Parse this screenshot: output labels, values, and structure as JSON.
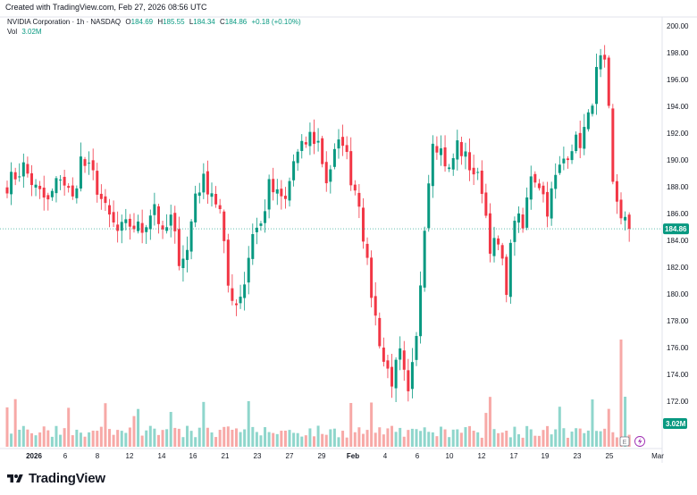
{
  "header": {
    "created_text": "Created with TradingView.com, Feb 27, 2026 08:56 UTC",
    "symbol": "NVIDIA Corporation · 1h · NASDAQ",
    "open_label": "O",
    "open": "184.69",
    "high_label": "H",
    "high": "185.55",
    "low_label": "L",
    "low": "184.34",
    "close_label": "C",
    "close": "184.86",
    "change": "+0.18 (+0.10%)",
    "volume_label": "Vol",
    "volume": "3.02M"
  },
  "footer": {
    "brand": "TradingView"
  },
  "colors": {
    "up": "#089981",
    "down": "#f23645",
    "up_volume": "#8fd6cc",
    "down_volume": "#f7a9a7",
    "last_price": "#089981"
  },
  "chart_data": {
    "type": "candlestick",
    "interval": "1h",
    "last_price_label": "184.86",
    "last_volume_label": "3.02M",
    "ylim": [
      170,
      201
    ],
    "y_ticks": [
      "200.00",
      "198.00",
      "196.00",
      "194.00",
      "192.00",
      "190.00",
      "188.00",
      "186.00",
      "184.00",
      "182.00",
      "180.00",
      "178.00",
      "176.00",
      "174.00",
      "172.00"
    ],
    "x_ticks": [
      "2026",
      "6",
      "8",
      "12",
      "14",
      "16",
      "21",
      "23",
      "27",
      "29",
      "Feb",
      "4",
      "6",
      "10",
      "12",
      "17",
      "19",
      "23",
      "25",
      "Mar"
    ],
    "bold_x_ticks": [
      "2026",
      "Feb"
    ],
    "close_path": [
      [
        0,
        188.2
      ],
      [
        4,
        189.5
      ],
      [
        7,
        187.8
      ],
      [
        10,
        186.8
      ],
      [
        13,
        188.9
      ],
      [
        16,
        187.0
      ],
      [
        18,
        190.0
      ],
      [
        21,
        188.8
      ],
      [
        24,
        186.2
      ],
      [
        27,
        184.6
      ],
      [
        30,
        185.2
      ],
      [
        33,
        184.8
      ],
      [
        36,
        186.8
      ],
      [
        38,
        184.2
      ],
      [
        40,
        185.6
      ],
      [
        42,
        182.7
      ],
      [
        44,
        183.2
      ],
      [
        46,
        187.6
      ],
      [
        48,
        188.4
      ],
      [
        50,
        187.7
      ],
      [
        52,
        186.1
      ],
      [
        54,
        180.6
      ],
      [
        56,
        179.3
      ],
      [
        58,
        180.9
      ],
      [
        60,
        184.7
      ],
      [
        62,
        185.1
      ],
      [
        64,
        188.0
      ],
      [
        66,
        187.3
      ],
      [
        68,
        186.9
      ],
      [
        70,
        189.9
      ],
      [
        72,
        190.8
      ],
      [
        74,
        191.8
      ],
      [
        76,
        191.3
      ],
      [
        78,
        188.5
      ],
      [
        80,
        190.4
      ],
      [
        82,
        191.6
      ],
      [
        84,
        188.7
      ],
      [
        86,
        187.0
      ],
      [
        88,
        182.0
      ],
      [
        90,
        178.2
      ],
      [
        92,
        175.0
      ],
      [
        94,
        173.6
      ],
      [
        96,
        175.4
      ],
      [
        98,
        172.2
      ],
      [
        100,
        176.5
      ],
      [
        102,
        185.4
      ],
      [
        104,
        191.8
      ],
      [
        106,
        190.7
      ],
      [
        108,
        189.1
      ],
      [
        110,
        191.2
      ],
      [
        112,
        190.1
      ],
      [
        114,
        189.1
      ],
      [
        116,
        188.0
      ],
      [
        118,
        183.7
      ],
      [
        120,
        183.5
      ],
      [
        122,
        180.6
      ],
      [
        124,
        185.9
      ],
      [
        126,
        184.8
      ],
      [
        128,
        189.1
      ],
      [
        130,
        188.3
      ],
      [
        132,
        186.4
      ],
      [
        134,
        188.6
      ],
      [
        136,
        190.1
      ],
      [
        138,
        191.2
      ],
      [
        140,
        191.4
      ],
      [
        142,
        193.0
      ],
      [
        144,
        196.4
      ],
      [
        145,
        197.3
      ],
      [
        146,
        196.8
      ],
      [
        147,
        193.4
      ],
      [
        148,
        188.0
      ],
      [
        150,
        186.0
      ],
      [
        152,
        184.86
      ]
    ]
  }
}
